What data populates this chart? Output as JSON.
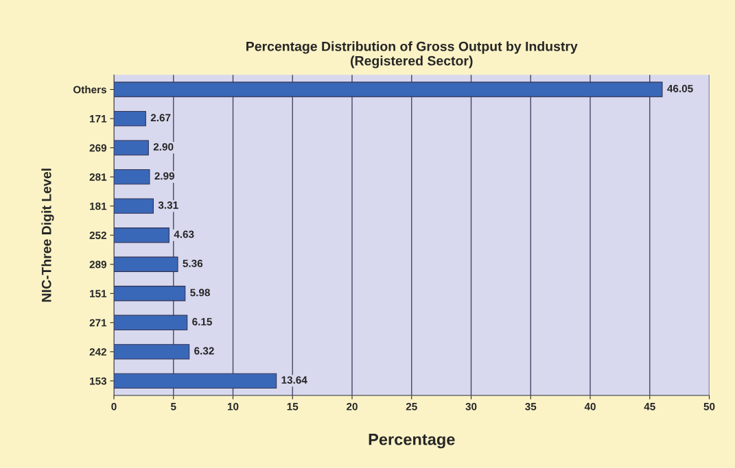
{
  "chart_data": {
    "type": "bar",
    "orientation": "horizontal",
    "title": "Percentage Distribution of Gross Output by Industry\n(Registered Sector)",
    "xlabel": "Percentage",
    "ylabel": "NIC-Three Digit Level",
    "categories": [
      "Others",
      "171",
      "269",
      "281",
      "181",
      "252",
      "289",
      "151",
      "271",
      "242",
      "153"
    ],
    "values": [
      46.05,
      2.67,
      2.9,
      2.99,
      3.31,
      4.63,
      5.36,
      5.98,
      6.15,
      6.32,
      13.64
    ],
    "value_labels": [
      "46.05",
      "2.67",
      "2.90",
      "2.99",
      "3.31",
      "4.63",
      "5.36",
      "5.98",
      "6.15",
      "6.32",
      "13.64"
    ],
    "color": "#3a68b8",
    "xlim": [
      0,
      50
    ],
    "xticks": [
      0,
      5,
      10,
      15,
      20,
      25,
      30,
      35,
      40,
      45,
      50
    ],
    "grid": "x",
    "legend": false
  }
}
